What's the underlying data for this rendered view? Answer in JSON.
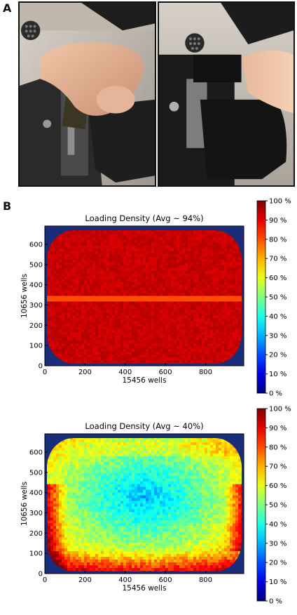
{
  "figure": {
    "panel_a_label": "A",
    "panel_b_label": "B"
  },
  "chart_data": [
    {
      "type": "heatmap",
      "title": "Loading Density (Avg ~ 94%)",
      "xlabel": "15456 wells",
      "ylabel": "10656 wells",
      "xlim": [
        0,
        990
      ],
      "ylim": [
        0,
        690
      ],
      "xticks": [
        "0",
        "200",
        "400",
        "600",
        "800"
      ],
      "yticks": [
        "0",
        "100",
        "200",
        "300",
        "400",
        "500",
        "600"
      ],
      "colorbar_ticks": [
        "100 %",
        "90 %",
        "80 %",
        "70 %",
        "60 %",
        "50 %",
        "40 %",
        "30 %",
        "20 %",
        "10 %",
        "0 %"
      ],
      "colorbar_range": [
        0,
        100
      ],
      "average_percent": 94,
      "grid": false
    },
    {
      "type": "heatmap",
      "title": "Loading Density (Avg ~ 40%)",
      "xlabel": "15456 wells",
      "ylabel": "10656 wells",
      "xlim": [
        0,
        990
      ],
      "ylim": [
        0,
        690
      ],
      "xticks": [
        "0",
        "200",
        "400",
        "600",
        "800"
      ],
      "yticks": [
        "0",
        "100",
        "200",
        "300",
        "400",
        "500",
        "600"
      ],
      "colorbar_ticks": [
        "100 %",
        "90 %",
        "80 %",
        "70 %",
        "60 %",
        "50 %",
        "40 %",
        "30 %",
        "20 %",
        "10 %",
        "0 %"
      ],
      "colorbar_range": [
        0,
        100
      ],
      "average_percent": 40,
      "grid": false
    }
  ]
}
